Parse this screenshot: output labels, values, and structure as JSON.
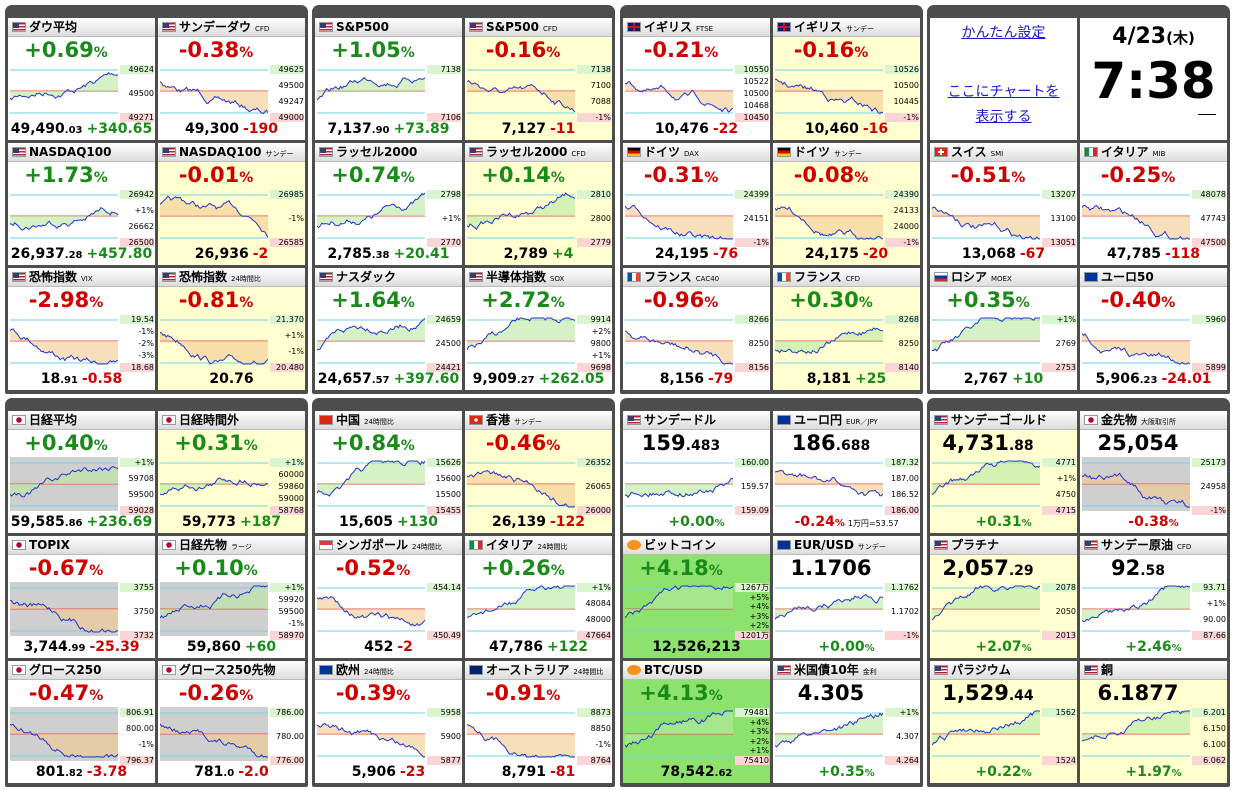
{
  "widgets": {
    "settings_link": "かんたん設定",
    "chart_link_line1": "ここにチャートを",
    "chart_link_line2": "表示する",
    "date": "4/23",
    "weekday": "(木)",
    "time": "7:38"
  },
  "groups": [
    {
      "tiles": [
        {
          "flag": "us",
          "name": "ダウ平均",
          "big": "+0.69",
          "big_small": "%",
          "labels": [
            "49624",
            "49500",
            "49271"
          ],
          "foot": "49,490",
          "foot_small": ".03",
          "extra": "+340.65"
        },
        {
          "flag": "us",
          "name": "サンデーダウ",
          "tag": "CFD",
          "big": "-0.38",
          "big_small": "%",
          "labels": [
            "49625",
            "49500",
            "49247",
            "49000"
          ],
          "foot": "49,300",
          "extra": "-190"
        },
        {
          "flag": "us",
          "name": "NASDAQ100",
          "big": "+1.73",
          "big_small": "%",
          "labels": [
            "26942",
            "+1%",
            "26662",
            "26500"
          ],
          "foot": "26,937",
          "foot_small": ".28",
          "extra": "+457.80"
        },
        {
          "flag": "us",
          "name": "NASDAQ100",
          "tag": "サンデー",
          "big": "-0.01",
          "big_small": "%",
          "labels": [
            "26985",
            "-1%",
            "26585"
          ],
          "foot": "26,936",
          "extra": "-2",
          "bg": "yellow"
        },
        {
          "flag": "us",
          "name": "恐怖指数",
          "tag": "VIX",
          "big": "-2.98",
          "big_small": "%",
          "labels": [
            "19.54",
            "-1%",
            "-2%",
            "-3%",
            "18.68"
          ],
          "foot": "18",
          "foot_small": ".91",
          "extra": "-0.58"
        },
        {
          "flag": "us",
          "name": "恐怖指数",
          "tag": "24時間比",
          "big": "-0.81",
          "big_small": "%",
          "labels": [
            "21.370",
            "+1%",
            "-1%",
            "20.480"
          ],
          "foot": "20.76",
          "bg": "yellow"
        }
      ]
    },
    {
      "tiles": [
        {
          "flag": "us",
          "name": "S&P500",
          "big": "+1.05",
          "big_small": "%",
          "labels": [
            "7138",
            "7106"
          ],
          "foot": "7,137",
          "foot_small": ".90",
          "extra": "+73.89"
        },
        {
          "flag": "us",
          "name": "S&P500",
          "tag": "CFD",
          "big": "-0.16",
          "big_small": "%",
          "labels": [
            "7138",
            "7100",
            "7088",
            "-1%"
          ],
          "foot": "7,127",
          "extra": "-11",
          "bg": "yellow"
        },
        {
          "flag": "us",
          "name": "ラッセル2000",
          "big": "+0.74",
          "big_small": "%",
          "labels": [
            "2798",
            "+1%",
            "2770"
          ],
          "foot": "2,785",
          "foot_small": ".38",
          "extra": "+20.41"
        },
        {
          "flag": "us",
          "name": "ラッセル2000",
          "tag": "CFD",
          "big": "+0.14",
          "big_small": "%",
          "labels": [
            "2810",
            "2800",
            "2779"
          ],
          "foot": "2,789",
          "extra": "+4",
          "bg": "yellow"
        },
        {
          "flag": "us",
          "name": "ナスダック",
          "big": "+1.64",
          "big_small": "%",
          "labels": [
            "24659",
            "24500",
            "24421"
          ],
          "foot": "24,657",
          "foot_small": ".57",
          "extra": "+397.60"
        },
        {
          "flag": "us",
          "name": "半導体指数",
          "tag": "SOX",
          "big": "+2.72",
          "big_small": "%",
          "labels": [
            "9914",
            "+2%",
            "9800",
            "+1%",
            "9698"
          ],
          "foot": "9,909",
          "foot_small": ".27",
          "extra": "+262.05"
        }
      ]
    },
    {
      "tiles": [
        {
          "flag": "gb",
          "name": "イギリス",
          "tag": "FTSE",
          "big": "-0.21",
          "big_small": "%",
          "labels": [
            "10550",
            "10522",
            "10500",
            "10468",
            "10450"
          ],
          "foot": "10,476",
          "extra": "-22"
        },
        {
          "flag": "gb",
          "name": "イギリス",
          "tag": "サンデー",
          "big": "-0.16",
          "big_small": "%",
          "labels": [
            "10526",
            "10500",
            "10445",
            "-1%"
          ],
          "foot": "10,460",
          "extra": "-16",
          "bg": "yellow"
        },
        {
          "flag": "de",
          "name": "ドイツ",
          "tag": "DAX",
          "big": "-0.31",
          "big_small": "%",
          "labels": [
            "24399",
            "24151",
            "-1%"
          ],
          "foot": "24,195",
          "extra": "-76"
        },
        {
          "flag": "de",
          "name": "ドイツ",
          "tag": "サンデー",
          "big": "-0.08",
          "big_small": "%",
          "labels": [
            "24390",
            "24133",
            "24000",
            "-1%"
          ],
          "foot": "24,175",
          "extra": "-20",
          "bg": "yellow"
        },
        {
          "flag": "fr",
          "name": "フランス",
          "tag": "CAC40",
          "big": "-0.96",
          "big_small": "%",
          "labels": [
            "8266",
            "8250",
            "8156"
          ],
          "foot": "8,156",
          "extra": "-79"
        },
        {
          "flag": "fr",
          "name": "フランス",
          "tag": "CFD",
          "big": "+0.30",
          "big_small": "%",
          "labels": [
            "8268",
            "8250",
            "8140"
          ],
          "foot": "8,181",
          "extra": "+25",
          "bg": "yellow"
        }
      ]
    },
    {
      "tiles": [
        {
          "flag": "ch",
          "name": "スイス",
          "tag": "SMI",
          "big": "-0.51",
          "big_small": "%",
          "labels": [
            "13207",
            "13100",
            "13051"
          ],
          "foot": "13,068",
          "extra": "-67"
        },
        {
          "flag": "it",
          "name": "イタリア",
          "tag": "MIB",
          "big": "-0.25",
          "big_small": "%",
          "labels": [
            "48078",
            "47743",
            "47500"
          ],
          "foot": "47,785",
          "extra": "-118"
        },
        {
          "flag": "ru",
          "name": "ロシア",
          "tag": "MOEX",
          "big": "+0.35",
          "big_small": "%",
          "labels": [
            "+1%",
            "2769",
            "2753"
          ],
          "foot": "2,767",
          "extra": "+10"
        },
        {
          "flag": "eu",
          "name": "ユーロ50",
          "big": "-0.40",
          "big_small": "%",
          "labels": [
            "5960",
            "5899"
          ],
          "foot": "5,906",
          "foot_small": ".23",
          "extra": "-24.01"
        }
      ]
    },
    {
      "tiles": [
        {
          "flag": "jp",
          "name": "日経平均",
          "big": "+0.40",
          "big_small": "%",
          "labels": [
            "+1%",
            "59708",
            "59500",
            "59028"
          ],
          "foot": "59,585",
          "foot_small": ".86",
          "extra": "+236.69",
          "bg": "gray"
        },
        {
          "flag": "jp",
          "name": "日経時間外",
          "big": "+0.31",
          "big_small": "%",
          "labels": [
            "+1%",
            "60000",
            "59860",
            "59000",
            "58768"
          ],
          "foot": "59,773",
          "extra": "+187",
          "bg": "yellow"
        },
        {
          "flag": "jp",
          "name": "TOPIX",
          "big": "-0.67",
          "big_small": "%",
          "labels": [
            "3755",
            "3750",
            "3732"
          ],
          "foot": "3,744",
          "foot_small": ".99",
          "extra": "-25.39",
          "bg": "gray"
        },
        {
          "flag": "jp",
          "name": "日経先物",
          "tag": "ラージ",
          "big": "+0.10",
          "big_small": "%",
          "labels": [
            "+1%",
            "59920",
            "59500",
            "-1%",
            "58970"
          ],
          "foot": "59,860",
          "extra": "+60",
          "bg": "gray"
        },
        {
          "flag": "jp",
          "name": "グロース250",
          "big": "-0.47",
          "big_small": "%",
          "labels": [
            "806.91",
            "800.00",
            "-1%",
            "796.37"
          ],
          "foot": "801",
          "foot_small": ".82",
          "extra": "-3.78",
          "bg": "gray"
        },
        {
          "flag": "jp",
          "name": "グロース250先物",
          "big": "-0.26",
          "big_small": "%",
          "labels": [
            "786.00",
            "780.00",
            "776.00"
          ],
          "foot": "781",
          "foot_small": ".0",
          "extra": "-2.0",
          "bg": "gray"
        }
      ]
    },
    {
      "tiles": [
        {
          "flag": "cn",
          "name": "中国",
          "tag": "24時間比",
          "big": "+0.84",
          "big_small": "%",
          "labels": [
            "15626",
            "15600",
            "15500",
            "15455"
          ],
          "foot": "15,605",
          "extra": "+130"
        },
        {
          "flag": "hk",
          "name": "香港",
          "tag": "サンデー",
          "big": "-0.46",
          "big_small": "%",
          "labels": [
            "26352",
            "26065",
            "26000"
          ],
          "foot": "26,139",
          "extra": "-122",
          "bg": "yellow"
        },
        {
          "flag": "sg",
          "name": "シンガポール",
          "tag": "24時間比",
          "big": "-0.52",
          "big_small": "%",
          "labels": [
            "454.14",
            "450.49"
          ],
          "foot": "452",
          "extra": "-2"
        },
        {
          "flag": "it",
          "name": "イタリア",
          "tag": "24時間比",
          "big": "+0.26",
          "big_small": "%",
          "labels": [
            "+1%",
            "48084",
            "48000",
            "47664"
          ],
          "foot": "47,786",
          "extra": "+122"
        },
        {
          "flag": "eu",
          "name": "欧州",
          "tag": "24時間比",
          "big": "-0.39",
          "big_small": "%",
          "labels": [
            "5958",
            "5900",
            "5877"
          ],
          "foot": "5,906",
          "extra": "-23"
        },
        {
          "flag": "au",
          "name": "オーストラリア",
          "tag": "24時間比",
          "big": "-0.91",
          "big_small": "%",
          "labels": [
            "8873",
            "8850",
            "-1%",
            "8764"
          ],
          "foot": "8,791",
          "extra": "-81"
        }
      ]
    },
    {
      "tiles": [
        {
          "flag": "us",
          "name": "サンデードル",
          "big": "159",
          "big_small": ".483",
          "labels": [
            "160.00",
            "159.57",
            "159.09"
          ],
          "foot": "+0.00",
          "foot_small": "%"
        },
        {
          "flag": "eu",
          "name": "ユーロ円",
          "tag": "EUR／JPY",
          "big": "186",
          "big_small": ".688",
          "labels": [
            "187.32",
            "187.00",
            "186.52",
            "186.00"
          ],
          "foot": "-0.24",
          "foot_small": "%",
          "note": "1万円=53.57"
        },
        {
          "flag": "btc",
          "name": "ビットコイン",
          "big": "+4.18",
          "big_small": "%",
          "labels": [
            "1267万",
            "+5%",
            "+4%",
            "+3%",
            "+2%",
            "1201万"
          ],
          "foot": "12,526,213",
          "bg": "green"
        },
        {
          "flag": "eu",
          "name": "EUR/USD",
          "tag": "サンデー",
          "big": "1.1706",
          "labels": [
            "1.1762",
            "1.1702",
            "-1%"
          ],
          "foot": "+0.00",
          "foot_small": "%"
        },
        {
          "flag": "btc",
          "name": "BTC/USD",
          "big": "+4.13",
          "big_small": "%",
          "labels": [
            "79481",
            "+4%",
            "+3%",
            "+2%",
            "+1%",
            "75410"
          ],
          "foot": "78,542",
          "foot_small": ".62",
          "bg": "green"
        },
        {
          "flag": "us",
          "name": "米国債10年",
          "tag": "金利",
          "big": "4.305",
          "labels": [
            "+1%",
            "4.307",
            "4.264"
          ],
          "foot": "+0.35",
          "foot_small": "%"
        }
      ]
    },
    {
      "tiles": [
        {
          "flag": "us",
          "name": "サンデーゴールド",
          "big": "4,731",
          "big_small": ".88",
          "labels": [
            "4771",
            "+1%",
            "4750",
            "4715"
          ],
          "foot": "+0.31",
          "foot_small": "%",
          "bg": "yellow"
        },
        {
          "flag": "jp",
          "name": "金先物",
          "tag": "大阪取引所",
          "big": "25,054",
          "labels": [
            "25173",
            "24958",
            "-1%"
          ],
          "foot": "-0.38",
          "foot_small": "%",
          "bg": "gray"
        },
        {
          "flag": "us",
          "name": "プラチナ",
          "big": "2,057",
          "big_small": ".29",
          "labels": [
            "2078",
            "2050",
            "2013"
          ],
          "foot": "+2.07",
          "foot_small": "%",
          "bg": "yellow"
        },
        {
          "flag": "us",
          "name": "サンデー原油",
          "tag": "CFD",
          "big": "92",
          "big_small": ".58",
          "labels": [
            "93.71",
            "+1%",
            "90.00",
            "87.66"
          ],
          "foot": "+2.46",
          "foot_small": "%"
        },
        {
          "flag": "us",
          "name": "パラジウム",
          "big": "1,529",
          "big_small": ".44",
          "labels": [
            "1562",
            "1524"
          ],
          "foot": "+0.22",
          "foot_small": "%",
          "bg": "yellow"
        },
        {
          "flag": "us",
          "name": "銅",
          "big": "6.1877",
          "labels": [
            "6.201",
            "6.150",
            "6.100",
            "6.062"
          ],
          "foot": "+1.97",
          "foot_small": "%",
          "bg": "yellow"
        }
      ]
    }
  ]
}
